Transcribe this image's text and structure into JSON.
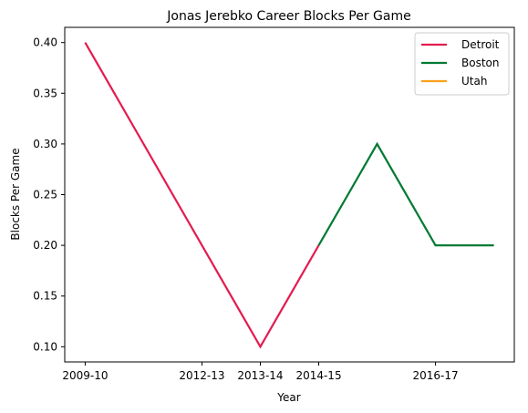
{
  "chart_data": {
    "type": "line",
    "title": "Jonas Jerebko Career Blocks Per Game",
    "xlabel": "Year",
    "ylabel": "Blocks Per Game",
    "x_tick_labels": [
      "2009-10",
      "2012-13",
      "2013-14",
      "2014-15",
      "2016-17"
    ],
    "x_tick_positions": [
      0,
      2,
      3,
      4,
      6
    ],
    "xlim": [
      -0.35,
      7.35
    ],
    "ylim": [
      0.085,
      0.415
    ],
    "y_ticks": [
      0.1,
      0.15,
      0.2,
      0.25,
      0.3,
      0.35,
      0.4
    ],
    "y_tick_labels": [
      "0.10",
      "0.15",
      "0.20",
      "0.25",
      "0.30",
      "0.35",
      "0.40"
    ],
    "grid": false,
    "legend_position": "top-right",
    "series": [
      {
        "name": "Detroit",
        "color": "#e31c4f",
        "points": [
          [
            0,
            0.4
          ],
          [
            3,
            0.1
          ],
          [
            4,
            0.2
          ]
        ]
      },
      {
        "name": "Boston",
        "color": "#007a33",
        "points": [
          [
            4,
            0.2
          ],
          [
            5,
            0.3
          ],
          [
            6,
            0.2
          ],
          [
            7,
            0.2
          ]
        ]
      },
      {
        "name": "Utah",
        "color": "#f9a01b",
        "points": []
      }
    ]
  }
}
